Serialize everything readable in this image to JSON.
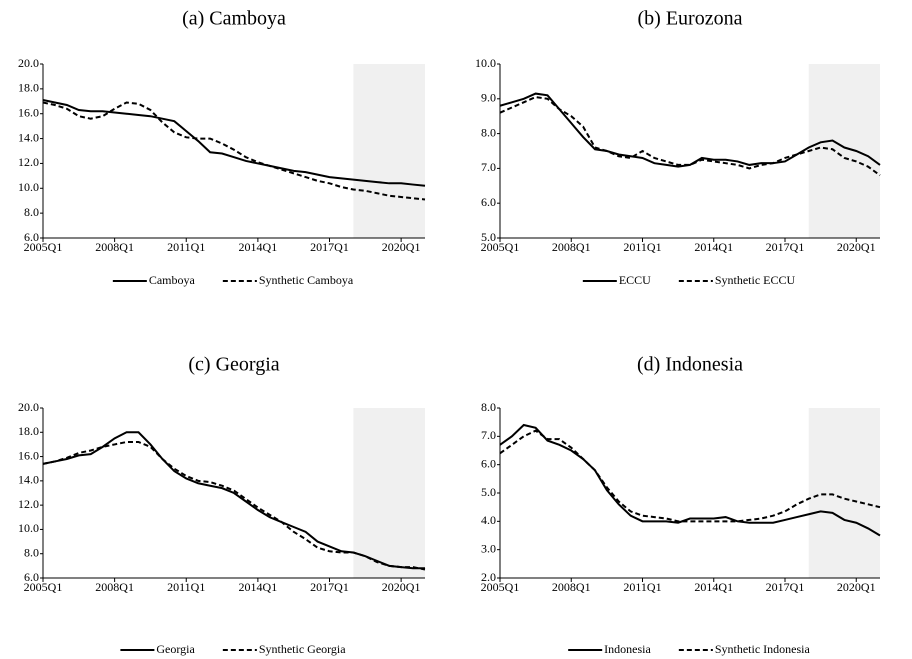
{
  "chart_data": [
    {
      "type": "line",
      "title": "(a) Camboya",
      "x": [
        2005,
        2005.5,
        2006,
        2006.5,
        2007,
        2007.5,
        2008,
        2008.5,
        2009,
        2009.5,
        2010,
        2010.5,
        2011,
        2011.5,
        2012,
        2012.5,
        2013,
        2013.5,
        2014,
        2014.5,
        2015,
        2015.5,
        2016,
        2016.5,
        2017,
        2017.5,
        2018,
        2018.5,
        2019,
        2019.5,
        2020,
        2020.5,
        2021
      ],
      "xlim": [
        2005,
        2021
      ],
      "xticks": [
        {
          "value": 2005,
          "label": "2005Q1"
        },
        {
          "value": 2008,
          "label": "2008Q1"
        },
        {
          "value": 2011,
          "label": "2011Q1"
        },
        {
          "value": 2014,
          "label": "2014Q1"
        },
        {
          "value": 2017,
          "label": "2017Q1"
        },
        {
          "value": 2020,
          "label": "2020Q1"
        }
      ],
      "ylim": [
        6,
        20
      ],
      "yticks": [
        {
          "value": 6,
          "label": "6.0"
        },
        {
          "value": 8,
          "label": "8.0"
        },
        {
          "value": 10,
          "label": "10.0"
        },
        {
          "value": 12,
          "label": "12.0"
        },
        {
          "value": 14,
          "label": "14.0"
        },
        {
          "value": 16,
          "label": "16.0"
        },
        {
          "value": 18,
          "label": "18.0"
        },
        {
          "value": 20,
          "label": "20.0"
        }
      ],
      "shaded_x": [
        2018,
        2021
      ],
      "series": [
        {
          "name": "Camboya",
          "color": "#000000",
          "style": "solid",
          "values": [
            17.1,
            16.9,
            16.7,
            16.3,
            16.2,
            16.2,
            16.1,
            16.0,
            15.9,
            15.8,
            15.6,
            15.4,
            14.6,
            13.8,
            12.9,
            12.8,
            12.5,
            12.2,
            12.0,
            11.8,
            11.6,
            11.4,
            11.3,
            11.1,
            10.9,
            10.8,
            10.7,
            10.6,
            10.5,
            10.4,
            10.4,
            10.3,
            10.2
          ]
        },
        {
          "name": "Synthetic Camboya",
          "color": "#000000",
          "style": "dashed",
          "values": [
            16.9,
            16.7,
            16.4,
            15.8,
            15.6,
            15.8,
            16.4,
            16.9,
            16.8,
            16.3,
            15.3,
            14.5,
            14.1,
            14.0,
            14.0,
            13.6,
            13.1,
            12.5,
            12.1,
            11.8,
            11.5,
            11.2,
            10.9,
            10.6,
            10.4,
            10.1,
            9.9,
            9.8,
            9.6,
            9.4,
            9.3,
            9.2,
            9.1
          ]
        }
      ]
    },
    {
      "type": "line",
      "title": "(b) Eurozona",
      "x": [
        2005,
        2005.5,
        2006,
        2006.5,
        2007,
        2007.5,
        2008,
        2008.5,
        2009,
        2009.5,
        2010,
        2010.5,
        2011,
        2011.5,
        2012,
        2012.5,
        2013,
        2013.5,
        2014,
        2014.5,
        2015,
        2015.5,
        2016,
        2016.5,
        2017,
        2017.5,
        2018,
        2018.5,
        2019,
        2019.5,
        2020,
        2020.5,
        2021
      ],
      "xlim": [
        2005,
        2021
      ],
      "xticks": [
        {
          "value": 2005,
          "label": "2005Q1"
        },
        {
          "value": 2008,
          "label": "2008Q1"
        },
        {
          "value": 2011,
          "label": "2011Q1"
        },
        {
          "value": 2014,
          "label": "2014Q1"
        },
        {
          "value": 2017,
          "label": "2017Q1"
        },
        {
          "value": 2020,
          "label": "2020Q1"
        }
      ],
      "ylim": [
        5,
        10
      ],
      "yticks": [
        {
          "value": 5,
          "label": "5.0"
        },
        {
          "value": 6,
          "label": "6.0"
        },
        {
          "value": 7,
          "label": "7.0"
        },
        {
          "value": 8,
          "label": "8.0"
        },
        {
          "value": 9,
          "label": "9.0"
        },
        {
          "value": 10,
          "label": "10.0"
        }
      ],
      "shaded_x": [
        2018,
        2021
      ],
      "series": [
        {
          "name": "ECCU",
          "color": "#000000",
          "style": "solid",
          "values": [
            8.8,
            8.9,
            9.0,
            9.15,
            9.1,
            8.7,
            8.3,
            7.9,
            7.55,
            7.5,
            7.4,
            7.35,
            7.3,
            7.15,
            7.1,
            7.05,
            7.1,
            7.3,
            7.25,
            7.25,
            7.2,
            7.1,
            7.15,
            7.15,
            7.2,
            7.4,
            7.6,
            7.75,
            7.8,
            7.6,
            7.5,
            7.35,
            7.1
          ]
        },
        {
          "name": "Synthetic ECCU",
          "color": "#000000",
          "style": "dashed",
          "values": [
            8.6,
            8.75,
            8.9,
            9.05,
            9.0,
            8.7,
            8.5,
            8.2,
            7.6,
            7.5,
            7.35,
            7.3,
            7.5,
            7.3,
            7.2,
            7.1,
            7.1,
            7.25,
            7.2,
            7.15,
            7.1,
            7.0,
            7.1,
            7.15,
            7.3,
            7.4,
            7.5,
            7.6,
            7.55,
            7.3,
            7.2,
            7.05,
            6.8
          ]
        }
      ]
    },
    {
      "type": "line",
      "title": "(c) Georgia",
      "x": [
        2005,
        2005.5,
        2006,
        2006.5,
        2007,
        2007.5,
        2008,
        2008.5,
        2009,
        2009.5,
        2010,
        2010.5,
        2011,
        2011.5,
        2012,
        2012.5,
        2013,
        2013.5,
        2014,
        2014.5,
        2015,
        2015.5,
        2016,
        2016.5,
        2017,
        2017.5,
        2018,
        2018.5,
        2019,
        2019.5,
        2020,
        2020.5,
        2021
      ],
      "xlim": [
        2005,
        2021
      ],
      "xticks": [
        {
          "value": 2005,
          "label": "2005Q1"
        },
        {
          "value": 2008,
          "label": "2008Q1"
        },
        {
          "value": 2011,
          "label": "2011Q1"
        },
        {
          "value": 2014,
          "label": "2014Q1"
        },
        {
          "value": 2017,
          "label": "2017Q1"
        },
        {
          "value": 2020,
          "label": "2020Q1"
        }
      ],
      "ylim": [
        6,
        20
      ],
      "yticks": [
        {
          "value": 6,
          "label": "6.0"
        },
        {
          "value": 8,
          "label": "8.0"
        },
        {
          "value": 10,
          "label": "10.0"
        },
        {
          "value": 12,
          "label": "12.0"
        },
        {
          "value": 14,
          "label": "14.0"
        },
        {
          "value": 16,
          "label": "16.0"
        },
        {
          "value": 18,
          "label": "18.0"
        },
        {
          "value": 20,
          "label": "20.0"
        }
      ],
      "shaded_x": [
        2018,
        2021
      ],
      "series": [
        {
          "name": "Georgia",
          "color": "#000000",
          "style": "solid",
          "values": [
            15.4,
            15.6,
            15.8,
            16.1,
            16.2,
            16.8,
            17.5,
            18.0,
            18.0,
            17.0,
            15.8,
            14.8,
            14.2,
            13.8,
            13.6,
            13.4,
            13.0,
            12.3,
            11.6,
            11.0,
            10.6,
            10.2,
            9.8,
            9.0,
            8.6,
            8.2,
            8.1,
            7.8,
            7.4,
            7.0,
            6.9,
            6.8,
            6.8
          ]
        },
        {
          "name": "Synthetic Georgia",
          "color": "#000000",
          "style": "dashed",
          "values": [
            15.4,
            15.6,
            15.9,
            16.3,
            16.5,
            16.8,
            17.0,
            17.2,
            17.2,
            16.8,
            15.8,
            15.0,
            14.4,
            14.0,
            13.9,
            13.6,
            13.2,
            12.5,
            11.8,
            11.2,
            10.6,
            9.8,
            9.2,
            8.5,
            8.2,
            8.1,
            8.1,
            7.8,
            7.3,
            7.0,
            6.9,
            6.9,
            6.7
          ]
        }
      ]
    },
    {
      "type": "line",
      "title": "(d) Indonesia",
      "x": [
        2005,
        2005.5,
        2006,
        2006.5,
        2007,
        2007.5,
        2008,
        2008.5,
        2009,
        2009.5,
        2010,
        2010.5,
        2011,
        2011.5,
        2012,
        2012.5,
        2013,
        2013.5,
        2014,
        2014.5,
        2015,
        2015.5,
        2016,
        2016.5,
        2017,
        2017.5,
        2018,
        2018.5,
        2019,
        2019.5,
        2020,
        2020.5,
        2021
      ],
      "xlim": [
        2005,
        2021
      ],
      "xticks": [
        {
          "value": 2005,
          "label": "2005Q1"
        },
        {
          "value": 2008,
          "label": "2008Q1"
        },
        {
          "value": 2011,
          "label": "2011Q1"
        },
        {
          "value": 2014,
          "label": "2014Q1"
        },
        {
          "value": 2017,
          "label": "2017Q1"
        },
        {
          "value": 2020,
          "label": "2020Q1"
        }
      ],
      "ylim": [
        2,
        8
      ],
      "yticks": [
        {
          "value": 2,
          "label": "2.0"
        },
        {
          "value": 3,
          "label": "3.0"
        },
        {
          "value": 4,
          "label": "4.0"
        },
        {
          "value": 5,
          "label": "5.0"
        },
        {
          "value": 6,
          "label": "6.0"
        },
        {
          "value": 7,
          "label": "7.0"
        },
        {
          "value": 8,
          "label": "8.0"
        }
      ],
      "shaded_x": [
        2018,
        2021
      ],
      "series": [
        {
          "name": "Indonesia",
          "color": "#000000",
          "style": "solid",
          "values": [
            6.7,
            7.0,
            7.4,
            7.3,
            6.85,
            6.7,
            6.5,
            6.2,
            5.8,
            5.1,
            4.6,
            4.2,
            4.0,
            4.0,
            4.0,
            3.95,
            4.1,
            4.1,
            4.1,
            4.15,
            4.0,
            3.95,
            3.95,
            3.95,
            4.05,
            4.15,
            4.25,
            4.35,
            4.3,
            4.05,
            3.95,
            3.75,
            3.5
          ]
        },
        {
          "name": "Synthetic Indonesia",
          "color": "#000000",
          "style": "dashed",
          "values": [
            6.4,
            6.7,
            7.0,
            7.2,
            6.9,
            6.9,
            6.6,
            6.2,
            5.8,
            5.2,
            4.7,
            4.35,
            4.2,
            4.15,
            4.1,
            4.0,
            4.0,
            4.0,
            4.0,
            4.0,
            4.0,
            4.05,
            4.1,
            4.2,
            4.35,
            4.6,
            4.8,
            4.95,
            4.95,
            4.8,
            4.7,
            4.6,
            4.5
          ]
        }
      ]
    }
  ]
}
